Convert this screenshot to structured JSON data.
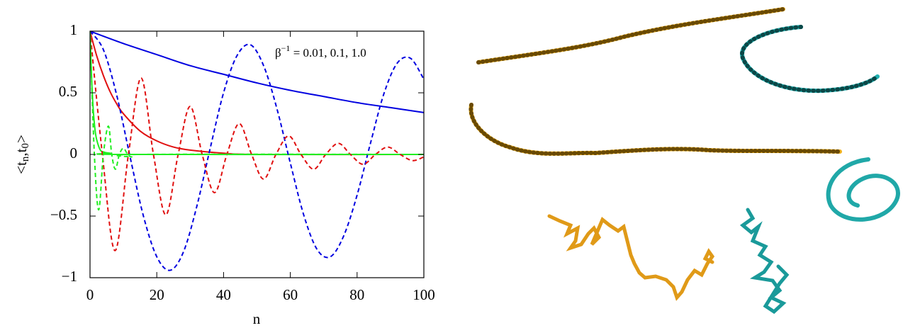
{
  "chart_data": {
    "type": "line",
    "xlabel": "n",
    "ylabel": {
      "open": "<t",
      "sub1": "n",
      "mid": ",t",
      "sub2": "0",
      "close": ">"
    },
    "annotation": {
      "base": "β",
      "sup": "−1",
      "rest": " = 0.01, 0.1, 1.0"
    },
    "xlim": [
      0,
      100
    ],
    "xticks": [
      0,
      20,
      40,
      60,
      80,
      100
    ],
    "ylim": [
      -1,
      1
    ],
    "yticks": [
      {
        "value": -1,
        "label": "−1"
      },
      {
        "value": -0.5,
        "label": "−0.5"
      },
      0,
      0.5,
      1
    ],
    "series": [
      {
        "color": "#0000e0",
        "linestyle": "solid",
        "x": [
          0,
          10,
          20,
          30,
          40,
          50,
          60,
          70,
          80,
          90,
          100
        ],
        "values": [
          1,
          0.9,
          0.81,
          0.72,
          0.65,
          0.58,
          0.52,
          0.47,
          0.42,
          0.38,
          0.34
        ]
      },
      {
        "color": "#e01010",
        "linestyle": "solid",
        "x": [
          0,
          2,
          4,
          6,
          8,
          10,
          15,
          20,
          25,
          30,
          40,
          50,
          100
        ],
        "values": [
          1,
          0.8,
          0.64,
          0.51,
          0.41,
          0.33,
          0.19,
          0.11,
          0.06,
          0.035,
          0.01,
          0,
          0
        ]
      },
      {
        "color": "#20ee20",
        "linestyle": "solid",
        "x": [
          0,
          0.5,
          1,
          1.5,
          2,
          3,
          4,
          6,
          10,
          100
        ],
        "values": [
          1,
          0.6,
          0.35,
          0.2,
          0.12,
          0.04,
          0.02,
          0.01,
          0,
          0
        ]
      },
      {
        "color": "#0000e0",
        "linestyle": "dashed",
        "x": [
          0,
          4,
          8,
          12,
          16,
          20,
          24,
          28,
          32,
          36,
          40,
          44,
          48,
          52,
          56,
          60,
          64,
          68,
          72,
          76,
          80,
          84,
          88,
          92,
          96,
          100
        ],
        "values": [
          1,
          0.85,
          0.48,
          -0.02,
          -0.5,
          -0.83,
          -0.94,
          -0.79,
          -0.42,
          0.05,
          0.5,
          0.8,
          0.89,
          0.72,
          0.37,
          -0.07,
          -0.49,
          -0.77,
          -0.83,
          -0.66,
          -0.33,
          0.09,
          0.49,
          0.74,
          0.78,
          0.61
        ]
      },
      {
        "color": "#e01010",
        "linestyle": "dashed",
        "x": [
          0,
          3.7,
          7.5,
          11.5,
          15.3,
          19,
          22.7,
          26.4,
          30,
          33.6,
          37.3,
          41,
          44.7,
          48.4,
          52,
          55.7,
          59.5,
          63.2,
          67,
          70.6,
          74.4,
          78,
          81.8,
          85.5,
          89.2,
          92.9,
          96.6,
          100
        ],
        "values": [
          1,
          0,
          -0.78,
          0,
          0.62,
          0,
          -0.49,
          0,
          0.39,
          0,
          -0.31,
          0,
          0.25,
          0,
          -0.2,
          0,
          0.15,
          0,
          -0.12,
          0,
          0.09,
          0,
          -0.08,
          0,
          0.06,
          0,
          -0.05,
          -0.02
        ]
      },
      {
        "color": "#20ee20",
        "linestyle": "dashed",
        "x": [
          0,
          1.3,
          2.6,
          4,
          5.5,
          6.5,
          7.6,
          8.8,
          10,
          11.3,
          12.5,
          15,
          100
        ],
        "values": [
          1,
          0,
          -0.45,
          0,
          0.23,
          0,
          -0.12,
          0,
          0.05,
          0,
          -0.02,
          0,
          0
        ]
      }
    ]
  }
}
